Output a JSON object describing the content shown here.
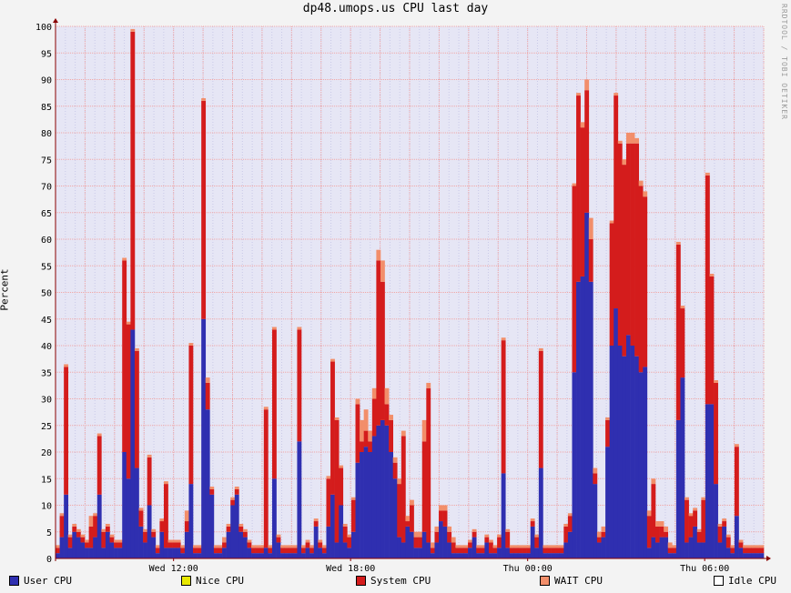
{
  "chart_data": {
    "type": "area",
    "title": "dp48.umops.us CPU last day",
    "ylabel": "Percent",
    "watermark": "RRDTOOL / TOBI OETIKER",
    "ylim": [
      0,
      100
    ],
    "yticks": [
      0,
      5,
      10,
      15,
      20,
      25,
      30,
      35,
      40,
      45,
      50,
      55,
      60,
      65,
      70,
      75,
      80,
      85,
      90,
      95,
      100
    ],
    "xlim": [
      0,
      24
    ],
    "xticks": [
      {
        "label": "Wed 12:00",
        "x": 4
      },
      {
        "label": "Wed 18:00",
        "x": 10
      },
      {
        "label": "Thu 00:00",
        "x": 16
      },
      {
        "label": "Thu 06:00",
        "x": 22
      }
    ],
    "series": [
      {
        "name": "User CPU",
        "color": "#2f2fb0",
        "values": [
          1,
          4,
          12,
          2,
          5,
          4,
          3,
          2,
          2,
          4,
          12,
          2,
          5,
          3,
          2,
          2,
          20,
          15,
          43,
          17,
          6,
          3,
          10,
          4,
          1,
          5,
          2,
          2,
          2,
          2,
          1,
          5,
          14,
          1,
          1,
          45,
          28,
          12,
          1,
          1,
          2,
          5,
          10,
          12,
          5,
          4,
          2,
          1,
          1,
          1,
          2,
          1,
          15,
          3,
          1,
          1,
          1,
          1,
          22,
          1,
          2,
          1,
          6,
          2,
          1,
          6,
          12,
          3,
          10,
          3,
          2,
          5,
          18,
          20,
          21,
          20,
          23,
          25,
          26,
          25,
          20,
          15,
          4,
          3,
          6,
          5,
          2,
          2,
          5,
          3,
          1,
          3,
          7,
          6,
          3,
          1,
          1,
          1,
          1,
          2,
          4,
          1,
          1,
          3,
          1,
          1,
          2,
          16,
          2,
          1,
          1,
          1,
          1,
          1,
          6,
          2,
          17,
          1,
          1,
          1,
          1,
          1,
          3,
          5,
          35,
          52,
          53,
          65,
          52,
          14,
          3,
          4,
          21,
          40,
          47,
          40,
          38,
          42,
          40,
          38,
          35,
          36,
          2,
          4,
          3,
          4,
          4,
          1,
          1,
          26,
          34,
          3,
          4,
          6,
          3,
          3,
          29,
          29,
          14,
          3,
          6,
          2,
          1,
          8,
          2,
          1,
          1,
          1,
          1,
          1
        ]
      },
      {
        "name": "Nice CPU",
        "color": "#e8e800",
        "values": []
      },
      {
        "name": "System CPU",
        "color": "#d41c1c",
        "values": [
          1,
          4,
          24,
          2,
          1,
          1,
          1,
          1,
          4,
          4,
          11,
          3,
          1,
          1,
          1,
          1,
          36,
          29,
          56,
          22,
          3,
          2,
          9,
          1,
          1,
          2,
          12,
          1,
          1,
          1,
          1,
          2,
          26,
          1,
          1,
          41,
          5,
          1,
          1,
          1,
          1,
          1,
          1,
          1,
          1,
          1,
          1,
          1,
          1,
          1,
          26,
          1,
          28,
          1,
          1,
          1,
          1,
          1,
          21,
          1,
          1,
          1,
          1,
          1,
          1,
          9,
          25,
          23,
          7,
          3,
          2,
          6,
          11,
          2,
          3,
          2,
          7,
          31,
          26,
          4,
          6,
          3,
          10,
          20,
          1,
          5,
          2,
          2,
          17,
          29,
          1,
          2,
          2,
          3,
          2,
          2,
          1,
          1,
          1,
          1,
          1,
          1,
          1,
          1,
          2,
          1,
          2,
          25,
          3,
          1,
          1,
          1,
          1,
          1,
          1,
          2,
          22,
          1,
          1,
          1,
          1,
          1,
          3,
          3,
          35,
          35,
          28,
          23,
          8,
          2,
          1,
          1,
          5,
          23,
          40,
          38,
          36,
          36,
          38,
          40,
          35,
          32,
          6,
          10,
          3,
          2,
          1,
          1,
          1,
          33,
          13,
          8,
          4,
          3,
          2,
          8,
          43,
          24,
          19,
          3,
          1,
          2,
          1,
          13,
          1,
          1,
          1,
          1,
          1,
          1
        ]
      },
      {
        "name": "WAIT CPU",
        "color": "#f28e6a",
        "values": [
          0.5,
          0.5,
          0.5,
          0.5,
          0.5,
          0.5,
          0.5,
          0.5,
          2,
          0.5,
          0.5,
          0.5,
          0.5,
          0.5,
          0.5,
          0.5,
          0.5,
          0.5,
          0.5,
          0.5,
          0.5,
          0.5,
          0.5,
          0.5,
          0.5,
          0.5,
          0.5,
          0.5,
          0.5,
          0.5,
          0.5,
          2,
          0.5,
          0.5,
          0.5,
          0.5,
          1,
          0.5,
          0.5,
          0.5,
          1,
          0.5,
          0.5,
          0.5,
          0.5,
          0.5,
          0.5,
          0.5,
          0.5,
          0.5,
          0.5,
          0.5,
          0.5,
          0.5,
          0.5,
          0.5,
          0.5,
          0.5,
          0.5,
          0.5,
          0.5,
          0.5,
          0.5,
          0.5,
          0.5,
          0.5,
          0.5,
          0.5,
          0.5,
          0.5,
          0.5,
          0.5,
          1,
          4,
          4,
          2,
          2,
          2,
          4,
          3,
          1,
          1,
          1,
          1,
          1,
          1,
          1,
          1,
          4,
          1,
          1,
          1,
          1,
          1,
          1,
          1,
          0.5,
          0.5,
          0.5,
          0.5,
          0.5,
          0.5,
          0.5,
          0.5,
          0.5,
          0.5,
          0.5,
          0.5,
          0.5,
          0.5,
          0.5,
          0.5,
          0.5,
          0.5,
          0.5,
          0.5,
          0.5,
          0.5,
          0.5,
          0.5,
          0.5,
          0.5,
          0.5,
          0.5,
          0.5,
          0.5,
          1,
          2,
          4,
          1,
          1,
          1,
          0.5,
          0.5,
          0.5,
          0.5,
          1,
          2,
          2,
          1,
          1,
          1,
          1,
          1,
          1,
          1,
          1,
          1,
          0.5,
          0.5,
          0.5,
          0.5,
          0.5,
          0.5,
          0.5,
          0.5,
          0.5,
          0.5,
          0.5,
          0.5,
          0.5,
          0.5,
          0.5,
          0.5,
          0.5,
          0.5,
          0.5,
          0.5,
          0.5,
          0.5,
          0.5,
          0.5
        ]
      },
      {
        "name": "Idle CPU",
        "color": "#ffffff",
        "values": []
      }
    ],
    "grid": true,
    "legend_position": "bottom",
    "colors": {
      "plot_background": "#e6e6f5",
      "major_grid": "#f0a6a6",
      "minor_grid": "#c9c9e8",
      "axis": "#8a0000",
      "canvas": "#f3f3f3"
    }
  }
}
